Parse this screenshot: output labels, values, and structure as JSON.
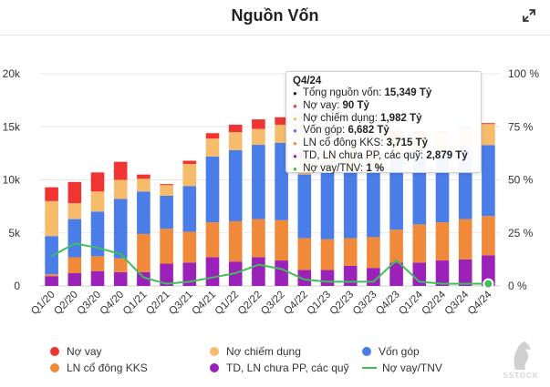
{
  "header": {
    "title": "Nguồn Vốn"
  },
  "colors": {
    "no_vay": "#f03434",
    "no_chiem_dung": "#f7bb6c",
    "von_gop": "#4a7de8",
    "ln_kks": "#f08a3a",
    "td_ln": "#9b22b8",
    "ratio": "#3fbf58"
  },
  "chart_data": {
    "type": "bar",
    "stacked": true,
    "categories": [
      "Q1/20",
      "Q2/20",
      "Q3/20",
      "Q4/20",
      "Q1/21",
      "Q2/21",
      "Q3/21",
      "Q4/21",
      "Q1/22",
      "Q2/22",
      "Q3/22",
      "Q4/22",
      "Q1/23",
      "Q2/23",
      "Q3/23",
      "Q4/23",
      "Q1/24",
      "Q2/24",
      "Q3/24",
      "Q4/24"
    ],
    "y_left": {
      "min": 0,
      "max": 20000,
      "ticks": [
        "0",
        "5k",
        "10k",
        "15k",
        "20k"
      ]
    },
    "y_right": {
      "min": 0,
      "max": 100,
      "ticks": [
        "0 %",
        "25 %",
        "50 %",
        "75 %",
        "100 %"
      ]
    },
    "series": [
      {
        "name": "TD, LN chưa PP, các quỹ",
        "color_key": "td_ln",
        "values": [
          900,
          1200,
          1400,
          1300,
          1300,
          2100,
          2200,
          2700,
          2300,
          2700,
          2400,
          1500,
          1500,
          1900,
          1700,
          2200,
          2200,
          2400,
          2500,
          2879
        ]
      },
      {
        "name": "LN cổ đông KKS",
        "color_key": "ln_kks",
        "values": [
          200,
          1500,
          1400,
          1300,
          3600,
          3300,
          2900,
          3300,
          3800,
          3600,
          3800,
          3000,
          2900,
          2600,
          2900,
          3100,
          3600,
          3600,
          3800,
          3715
        ]
      },
      {
        "name": "Vốn góp",
        "color_key": "von_gop",
        "values": [
          3600,
          3600,
          4200,
          5600,
          4000,
          3100,
          4300,
          6200,
          6700,
          7000,
          7300,
          6000,
          6300,
          6400,
          6600,
          6800,
          6700,
          6700,
          6700,
          6682
        ]
      },
      {
        "name": "Nợ chiếm dụng",
        "color_key": "no_chiem_dung",
        "values": [
          3300,
          1500,
          1900,
          1800,
          1200,
          1000,
          2100,
          1700,
          1700,
          1500,
          1700,
          1700,
          1500,
          1600,
          1500,
          1700,
          1800,
          1800,
          1900,
          1982
        ]
      },
      {
        "name": "Nợ vay",
        "color_key": "no_vay",
        "values": [
          1300,
          2000,
          1800,
          1700,
          400,
          100,
          300,
          500,
          700,
          900,
          700,
          400,
          300,
          400,
          300,
          900,
          300,
          100,
          100,
          90
        ]
      }
    ],
    "line": {
      "name": "Nợ vay/TNV",
      "color_key": "ratio",
      "axis": "right",
      "values": [
        14,
        20,
        18,
        15,
        4,
        1,
        2,
        4,
        6,
        10,
        8,
        3,
        2,
        2,
        2,
        12,
        2,
        1,
        1,
        1
      ]
    },
    "ylabel_left": "",
    "ylabel_right": "",
    "legend_position": "bottom",
    "grid": true,
    "highlight_index": 19
  },
  "tooltip": {
    "title": "Q4/24",
    "rows": [
      {
        "label": "Tổng nguồn vốn: ",
        "value": "15,349 Tỷ",
        "color_key": "total"
      },
      {
        "label": "Nợ vay: ",
        "value": "90 Tỷ",
        "color_key": "no_vay"
      },
      {
        "label": "Nợ chiếm dụng: ",
        "value": "1,982 Tỷ",
        "color_key": "no_chiem_dung"
      },
      {
        "label": "Vốn góp: ",
        "value": "6,682 Tỷ",
        "color_key": "von_gop"
      },
      {
        "label": "LN cổ đông KKS: ",
        "value": "3,715 Tỷ",
        "color_key": "ln_kks"
      },
      {
        "label": "TD, LN chưa PP, các quỹ: ",
        "value": "2,879 Tỷ",
        "color_key": "td_ln"
      },
      {
        "label": "Nợ vay/TNV: ",
        "value": "1 %",
        "color_key": "ratio"
      }
    ]
  },
  "legend": {
    "items": [
      {
        "label": "Nợ vay",
        "color_key": "no_vay",
        "kind": "dot"
      },
      {
        "label": "Nợ chiếm dụng",
        "color_key": "no_chiem_dung",
        "kind": "dot"
      },
      {
        "label": "Vốn góp",
        "color_key": "von_gop",
        "kind": "dot"
      },
      {
        "label": "LN cổ đông KKS",
        "color_key": "ln_kks",
        "kind": "dot"
      },
      {
        "label": "TD, LN chưa PP, các quỹ",
        "color_key": "td_ln",
        "kind": "dot"
      },
      {
        "label": "Nợ vay/TNV",
        "color_key": "ratio",
        "kind": "line"
      }
    ]
  },
  "watermark": {
    "text": "SSTOCK"
  }
}
